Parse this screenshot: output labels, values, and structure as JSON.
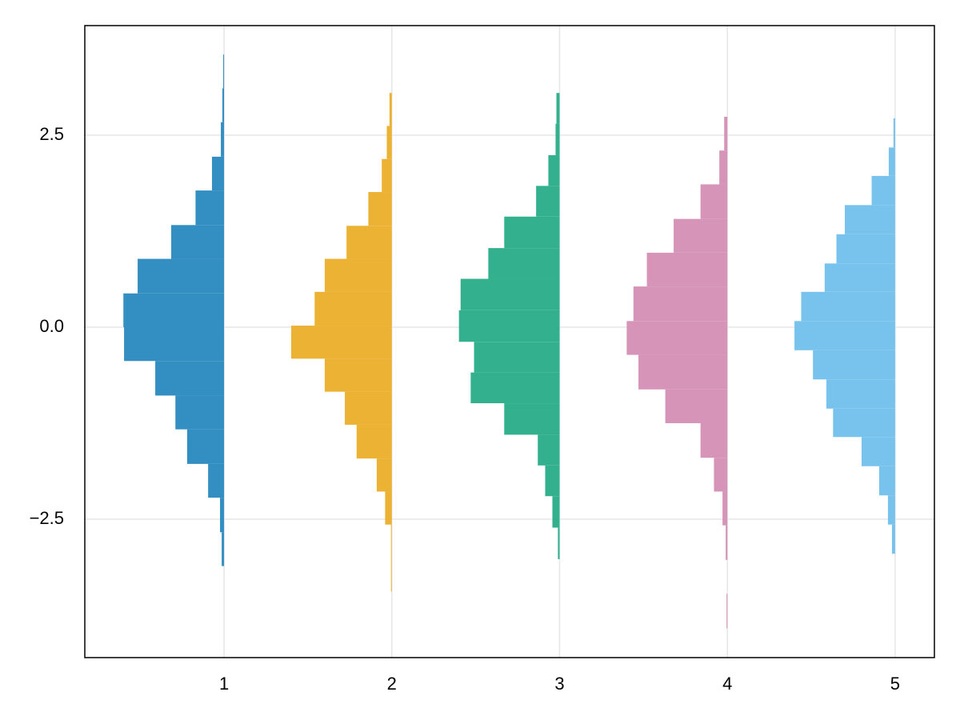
{
  "chart_data": {
    "type": "hist",
    "orientation": "horizontal",
    "grid": true,
    "xlim": [
      0.17,
      5.234
    ],
    "ylim": [
      -4.302,
      3.927
    ],
    "xticks": [
      1,
      2,
      3,
      4,
      5
    ],
    "yticks": [
      {
        "value": -2.5,
        "label": "−2.5"
      },
      {
        "value": 0,
        "label": "0.0"
      },
      2.5
    ],
    "series": [
      {
        "color": "#338ec1",
        "offset": 1,
        "bins": [
          -3.11,
          -2.67,
          -2.22,
          -1.78,
          -1.33,
          -0.89,
          -0.44,
          0,
          0.44,
          0.89,
          1.33,
          1.78,
          2.22,
          2.67,
          3.11,
          3.55
        ],
        "values": [
          0.014,
          0.024,
          0.095,
          0.22,
          0.29,
          0.41,
          0.596,
          0.6,
          0.515,
          0.315,
          0.17,
          0.072,
          0.019,
          0.01,
          0.005
        ]
      },
      {
        "color": "#ebb233",
        "offset": 2,
        "bins": [
          -3.44,
          -3.0,
          -2.57,
          -2.14,
          -1.71,
          -1.27,
          -0.84,
          -0.41,
          0.02,
          0.46,
          0.89,
          1.32,
          1.76,
          2.19,
          2.62,
          3.05
        ],
        "values": [
          0.005,
          0.005,
          0.04,
          0.09,
          0.21,
          0.28,
          0.4,
          0.6,
          0.46,
          0.4,
          0.27,
          0.14,
          0.06,
          0.03,
          0.014
        ]
      },
      {
        "color": "#33b18f",
        "offset": 3,
        "bins": [
          -3.02,
          -2.61,
          -2.2,
          -1.8,
          -1.4,
          -0.99,
          -0.59,
          -0.19,
          0.22,
          0.63,
          1.03,
          1.44,
          1.84,
          2.24,
          2.65,
          3.05
        ],
        "values": [
          0.01,
          0.043,
          0.086,
          0.13,
          0.33,
          0.53,
          0.51,
          0.6,
          0.59,
          0.425,
          0.33,
          0.14,
          0.067,
          0.024,
          0.019
        ]
      },
      {
        "color": "#d694b9",
        "offset": 4,
        "bins": [
          -3.92,
          -3.47,
          -3.03,
          -2.58,
          -2.14,
          -1.7,
          -1.25,
          -0.81,
          -0.36,
          0.08,
          0.53,
          0.97,
          1.41,
          1.86,
          2.3,
          2.74
        ],
        "values": [
          0.005,
          0,
          0.01,
          0.029,
          0.08,
          0.16,
          0.37,
          0.53,
          0.6,
          0.56,
          0.48,
          0.32,
          0.16,
          0.048,
          0.019
        ]
      },
      {
        "color": "#78c3ed",
        "offset": 5,
        "bins": [
          -2.95,
          -2.57,
          -2.19,
          -1.81,
          -1.43,
          -1.06,
          -0.68,
          -0.3,
          0.08,
          0.46,
          0.83,
          1.21,
          1.59,
          1.97,
          2.34,
          2.72
        ],
        "values": [
          0.019,
          0.043,
          0.095,
          0.2,
          0.37,
          0.41,
          0.49,
          0.6,
          0.56,
          0.42,
          0.35,
          0.3,
          0.14,
          0.038,
          0.01
        ]
      }
    ]
  }
}
